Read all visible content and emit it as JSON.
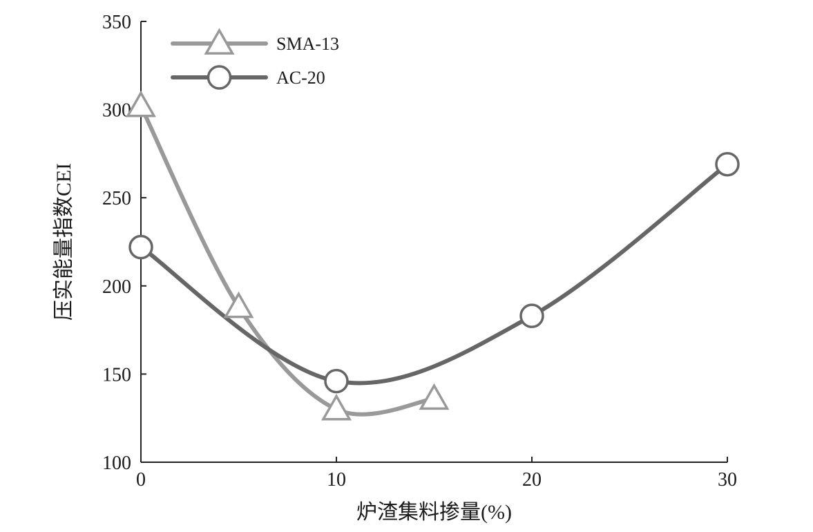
{
  "chart_data": {
    "type": "line",
    "xlabel": "炉渣集料掺量(%)",
    "ylabel": "压实能量指数CEI",
    "xlim": [
      0,
      30
    ],
    "ylim": [
      100,
      350
    ],
    "x_ticks": [
      0,
      10,
      20,
      30
    ],
    "y_ticks": [
      100,
      150,
      200,
      250,
      300,
      350
    ],
    "grid": false,
    "smooth": true,
    "legend": {
      "position": "top-left",
      "entries": [
        "SMA-13",
        "AC-20"
      ]
    },
    "series": [
      {
        "name": "SMA-13",
        "marker": "triangle",
        "color": "#999999",
        "points": [
          {
            "x": 0,
            "y": 302
          },
          {
            "x": 5,
            "y": 188
          },
          {
            "x": 10,
            "y": 130
          },
          {
            "x": 15,
            "y": 136
          }
        ]
      },
      {
        "name": "AC-20",
        "marker": "circle",
        "color": "#666666",
        "points": [
          {
            "x": 0,
            "y": 222
          },
          {
            "x": 10,
            "y": 146
          },
          {
            "x": 20,
            "y": 183
          },
          {
            "x": 30,
            "y": 269
          }
        ]
      }
    ]
  }
}
